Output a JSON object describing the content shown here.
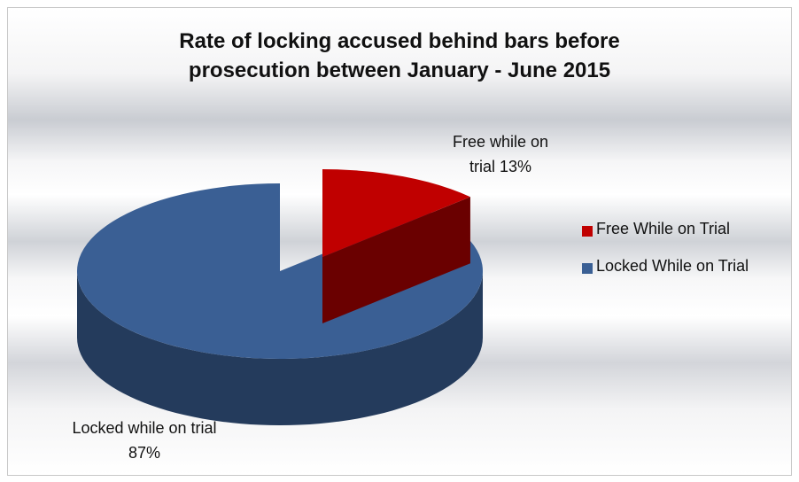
{
  "chart_data": {
    "type": "pie3d",
    "title": "Rate of locking accused behind bars before prosecution between January - June 2015",
    "categories": [
      "Free While on Trial",
      "Locked While on Trial"
    ],
    "values": [
      13,
      87
    ],
    "value_labels": [
      "Free while on trial 13%",
      "Locked while on trial 87%"
    ],
    "colors": [
      "#c00000",
      "#3a5f94"
    ],
    "legend": "right"
  }
}
